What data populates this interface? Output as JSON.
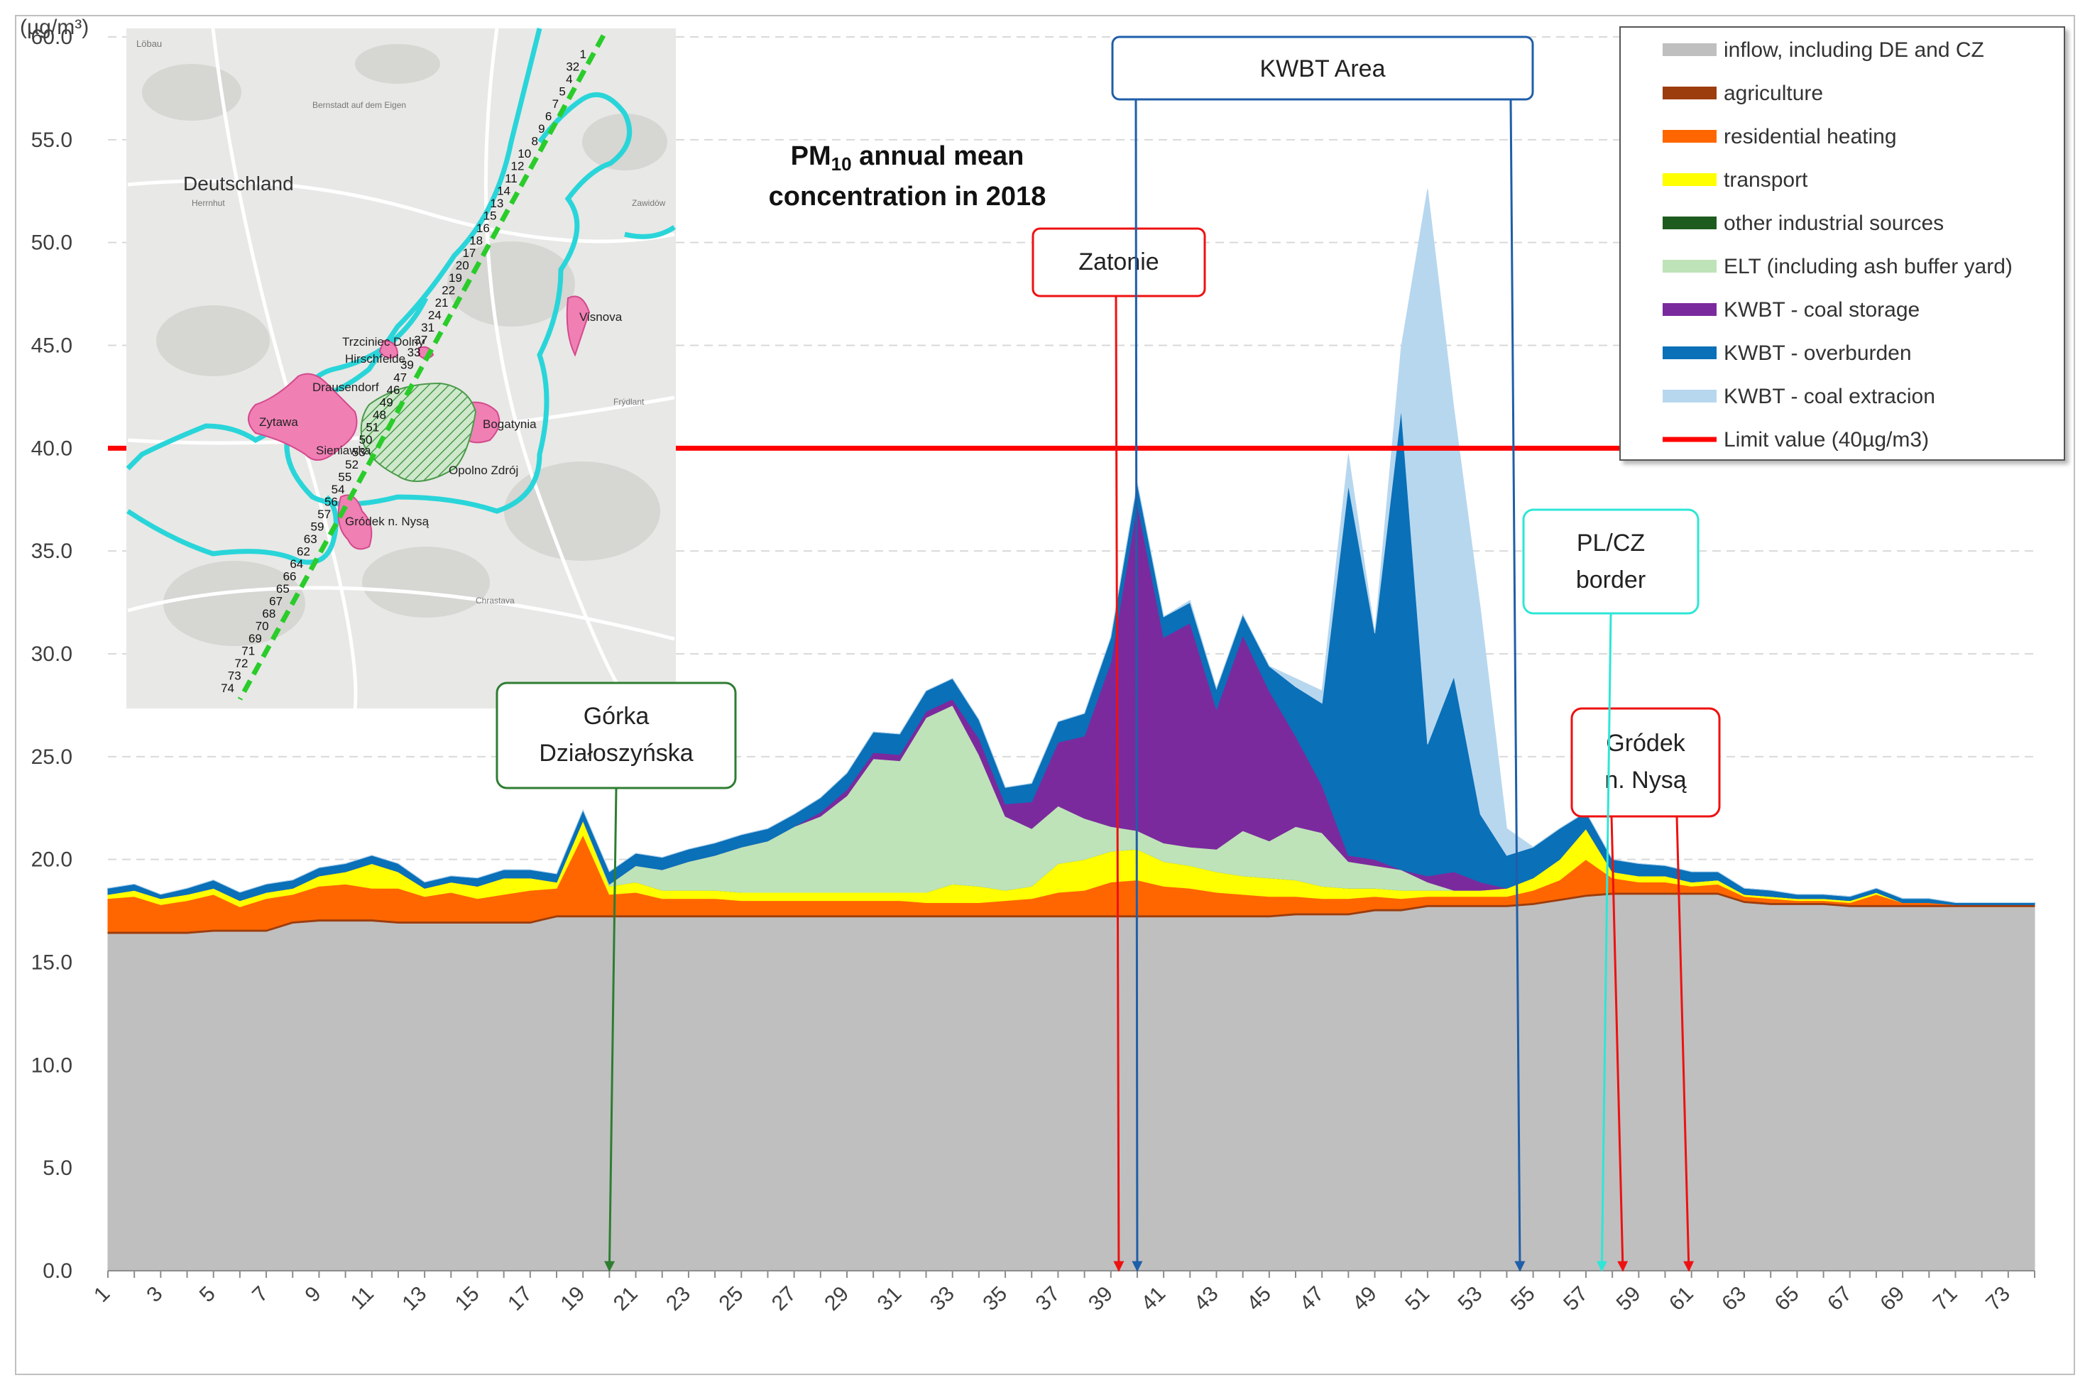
{
  "chart_data": {
    "type": "area",
    "title_main": "PM",
    "title_sub": "10",
    "title_rest": " annual mean",
    "title_line2": "concentration in 2018",
    "ylabel": "(µg/m³)",
    "ylim": [
      0,
      60
    ],
    "yticks": [
      "0.0",
      "5.0",
      "10.0",
      "15.0",
      "20.0",
      "25.0",
      "30.0",
      "35.0",
      "40.0",
      "45.0",
      "50.0",
      "55.0",
      "60.0"
    ],
    "x": [
      1,
      2,
      3,
      4,
      5,
      6,
      7,
      8,
      9,
      10,
      11,
      12,
      13,
      14,
      15,
      16,
      17,
      18,
      19,
      20,
      21,
      22,
      23,
      24,
      25,
      26,
      27,
      28,
      29,
      30,
      31,
      32,
      33,
      34,
      35,
      36,
      37,
      38,
      39,
      40,
      41,
      42,
      43,
      44,
      45,
      46,
      47,
      48,
      49,
      50,
      51,
      52,
      53,
      54,
      55,
      56,
      57,
      58,
      59,
      60,
      61,
      62,
      63,
      64,
      65,
      66,
      67,
      68,
      69,
      70,
      71,
      72,
      73,
      74
    ],
    "xtick_labels": [
      "1",
      "3",
      "5",
      "7",
      "9",
      "11",
      "13",
      "15",
      "17",
      "19",
      "21",
      "23",
      "25",
      "27",
      "29",
      "31",
      "33",
      "35",
      "37",
      "39",
      "41",
      "43",
      "45",
      "47",
      "49",
      "51",
      "53",
      "55",
      "57",
      "59",
      "61",
      "63",
      "65",
      "67",
      "69",
      "71",
      "73"
    ],
    "series": [
      {
        "name": "inflow, including DE and CZ",
        "color": "#bfbfbf",
        "values": [
          16.4,
          16.4,
          16.4,
          16.4,
          16.5,
          16.5,
          16.5,
          16.9,
          17.0,
          17.0,
          17.0,
          16.9,
          16.9,
          16.9,
          16.9,
          16.9,
          16.9,
          17.2,
          17.2,
          17.2,
          17.2,
          17.2,
          17.2,
          17.2,
          17.2,
          17.2,
          17.2,
          17.2,
          17.2,
          17.2,
          17.2,
          17.2,
          17.2,
          17.2,
          17.2,
          17.2,
          17.2,
          17.2,
          17.2,
          17.2,
          17.2,
          17.2,
          17.2,
          17.2,
          17.2,
          17.3,
          17.3,
          17.3,
          17.5,
          17.5,
          17.7,
          17.7,
          17.7,
          17.7,
          17.8,
          18.0,
          18.2,
          18.3,
          18.3,
          18.3,
          18.3,
          18.3,
          17.9,
          17.8,
          17.8,
          17.8,
          17.7,
          17.7,
          17.7,
          17.7,
          17.7,
          17.7,
          17.7,
          17.7
        ]
      },
      {
        "name": "agriculture",
        "color": "#9c3d0e",
        "values": [
          0.1,
          0.1,
          0.1,
          0.1,
          0.1,
          0.1,
          0.1,
          0.1,
          0.1,
          0.1,
          0.1,
          0.1,
          0.1,
          0.1,
          0.1,
          0.1,
          0.1,
          0.1,
          0.1,
          0.1,
          0.1,
          0.1,
          0.1,
          0.1,
          0.1,
          0.1,
          0.1,
          0.1,
          0.1,
          0.1,
          0.1,
          0.1,
          0.1,
          0.1,
          0.1,
          0.1,
          0.1,
          0.1,
          0.1,
          0.1,
          0.1,
          0.1,
          0.1,
          0.1,
          0.1,
          0.1,
          0.1,
          0.1,
          0.1,
          0.1,
          0.1,
          0.1,
          0.1,
          0.1,
          0.1,
          0.1,
          0.1,
          0.1,
          0.1,
          0.1,
          0.1,
          0.1,
          0.1,
          0.1,
          0.1,
          0.1,
          0.1,
          0.1,
          0.1,
          0.1,
          0.1,
          0.1,
          0.1,
          0.1
        ]
      },
      {
        "name": "residential heating",
        "color": "#ff6600",
        "values": [
          1.6,
          1.7,
          1.3,
          1.5,
          1.7,
          1.1,
          1.5,
          1.3,
          1.6,
          1.7,
          1.5,
          1.6,
          1.2,
          1.4,
          1.1,
          1.3,
          1.5,
          1.3,
          3.9,
          1.0,
          1.1,
          0.8,
          0.8,
          0.8,
          0.7,
          0.7,
          0.7,
          0.7,
          0.7,
          0.7,
          0.7,
          0.6,
          0.6,
          0.6,
          0.7,
          0.8,
          1.1,
          1.2,
          1.6,
          1.7,
          1.4,
          1.3,
          1.1,
          1.0,
          0.9,
          0.8,
          0.7,
          0.7,
          0.6,
          0.5,
          0.4,
          0.4,
          0.4,
          0.4,
          0.6,
          0.9,
          1.7,
          0.7,
          0.5,
          0.5,
          0.3,
          0.4,
          0.2,
          0.2,
          0.1,
          0.1,
          0.1,
          0.5,
          0.1,
          0.1,
          0.0,
          0.0,
          0.0,
          0.0
        ]
      },
      {
        "name": "transport",
        "color": "#ffff00",
        "values": [
          0.2,
          0.3,
          0.3,
          0.3,
          0.3,
          0.3,
          0.3,
          0.3,
          0.5,
          0.6,
          1.2,
          0.8,
          0.4,
          0.5,
          0.6,
          0.8,
          0.6,
          0.3,
          0.7,
          0.4,
          0.5,
          0.4,
          0.4,
          0.4,
          0.4,
          0.4,
          0.4,
          0.4,
          0.4,
          0.4,
          0.4,
          0.5,
          0.9,
          0.8,
          0.5,
          0.6,
          1.4,
          1.5,
          1.5,
          1.5,
          1.2,
          1.1,
          1.0,
          0.9,
          0.9,
          0.8,
          0.6,
          0.5,
          0.4,
          0.4,
          0.3,
          0.3,
          0.3,
          0.4,
          0.6,
          1.0,
          1.5,
          0.3,
          0.3,
          0.3,
          0.2,
          0.2,
          0.1,
          0.1,
          0.1,
          0.1,
          0.1,
          0.1,
          0.0,
          0.0,
          0.0,
          0.0,
          0.0,
          0.0
        ]
      },
      {
        "name": "other industrial sources",
        "color": "#1e5b1e",
        "values": [
          0.0,
          0.0,
          0.0,
          0.0,
          0.0,
          0.0,
          0.0,
          0.0,
          0.0,
          0.0,
          0.0,
          0.0,
          0.0,
          0.0,
          0.0,
          0.0,
          0.0,
          0.0,
          0.0,
          0.0,
          0.0,
          0.0,
          0.0,
          0.0,
          0.0,
          0.0,
          0.0,
          0.0,
          0.0,
          0.0,
          0.0,
          0.0,
          0.0,
          0.0,
          0.0,
          0.0,
          0.0,
          0.0,
          0.0,
          0.0,
          0.0,
          0.0,
          0.0,
          0.0,
          0.0,
          0.0,
          0.0,
          0.0,
          0.0,
          0.0,
          0.0,
          0.0,
          0.0,
          0.0,
          0.0,
          0.0,
          0.0,
          0.0,
          0.0,
          0.0,
          0.0,
          0.0,
          0.0,
          0.0,
          0.0,
          0.0,
          0.0,
          0.0,
          0.0,
          0.0,
          0.0,
          0.0,
          0.0,
          0.0
        ]
      },
      {
        "name": "ELT (including ash buffer yard)",
        "color": "#bee3b8",
        "values": [
          0.0,
          0.0,
          0.0,
          0.0,
          0.0,
          0.0,
          0.0,
          0.0,
          0.0,
          0.0,
          0.0,
          0.0,
          0.0,
          0.0,
          0.0,
          0.0,
          0.0,
          0.0,
          0.0,
          0.1,
          0.8,
          1.0,
          1.4,
          1.7,
          2.2,
          2.5,
          3.2,
          3.7,
          4.7,
          6.5,
          6.4,
          8.5,
          8.7,
          6.4,
          3.6,
          2.8,
          2.8,
          2.0,
          1.2,
          0.9,
          0.9,
          0.9,
          1.1,
          2.2,
          1.8,
          2.6,
          2.6,
          1.3,
          1.1,
          1.0,
          0.4,
          0.0,
          0.0,
          0.0,
          0.0,
          0.0,
          0.0,
          0.0,
          0.0,
          0.0,
          0.0,
          0.0,
          0.0,
          0.0,
          0.0,
          0.0,
          0.0,
          0.0,
          0.0,
          0.0,
          0.0,
          0.0,
          0.0,
          0.0
        ]
      },
      {
        "name": "KWBT - coal storage",
        "color": "#7b2a9e",
        "values": [
          0.0,
          0.0,
          0.0,
          0.0,
          0.0,
          0.0,
          0.0,
          0.0,
          0.0,
          0.0,
          0.0,
          0.0,
          0.0,
          0.0,
          0.0,
          0.0,
          0.0,
          0.0,
          0.0,
          0.0,
          0.0,
          0.0,
          0.0,
          0.0,
          0.0,
          0.0,
          0.0,
          0.2,
          0.3,
          0.3,
          0.3,
          0.3,
          0.3,
          0.8,
          0.6,
          1.3,
          3.1,
          4.0,
          8.0,
          15.9,
          10.0,
          10.9,
          6.8,
          9.5,
          7.3,
          4.4,
          2.3,
          0.3,
          0.3,
          0.0,
          0.3,
          0.9,
          0.4,
          0.0,
          0.0,
          0.0,
          0.0,
          0.0,
          0.0,
          0.0,
          0.0,
          0.0,
          0.0,
          0.0,
          0.0,
          0.0,
          0.0,
          0.0,
          0.0,
          0.0,
          0.0,
          0.0,
          0.0,
          0.0
        ]
      },
      {
        "name": "KWBT - overburden",
        "color": "#0a70b8",
        "values": [
          0.3,
          0.3,
          0.2,
          0.3,
          0.4,
          0.4,
          0.4,
          0.4,
          0.4,
          0.4,
          0.4,
          0.4,
          0.3,
          0.3,
          0.4,
          0.4,
          0.4,
          0.4,
          0.5,
          0.6,
          0.6,
          0.6,
          0.6,
          0.6,
          0.6,
          0.6,
          0.6,
          0.7,
          0.8,
          1.0,
          1.0,
          1.0,
          1.0,
          0.9,
          0.8,
          0.9,
          1.0,
          1.1,
          1.2,
          1.0,
          1.0,
          1.0,
          1.0,
          1.0,
          1.2,
          2.4,
          4.0,
          18.0,
          11.0,
          22.4,
          6.4,
          9.5,
          3.3,
          1.6,
          1.5,
          1.5,
          0.8,
          0.6,
          0.6,
          0.5,
          0.5,
          0.4,
          0.3,
          0.3,
          0.2,
          0.2,
          0.2,
          0.2,
          0.2,
          0.2,
          0.1,
          0.1,
          0.1,
          0.1
        ]
      },
      {
        "name": "KWBT - coal extracion",
        "color": "#b7d7ef",
        "values": [
          0.0,
          0.0,
          0.0,
          0.0,
          0.0,
          0.0,
          0.0,
          0.0,
          0.0,
          0.0,
          0.0,
          0.0,
          0.0,
          0.0,
          0.0,
          0.0,
          0.0,
          0.0,
          0.0,
          0.0,
          0.0,
          0.0,
          0.0,
          0.0,
          0.0,
          0.0,
          0.0,
          0.0,
          0.0,
          0.0,
          0.0,
          0.0,
          0.0,
          0.0,
          0.0,
          0.0,
          0.0,
          0.0,
          0.0,
          0.0,
          0.0,
          0.1,
          0.0,
          0.0,
          0.0,
          0.4,
          0.6,
          1.5,
          0.0,
          3.0,
          27.0,
          13.0,
          10.0,
          1.3,
          0.0,
          0.0,
          0.0,
          0.0,
          0.0,
          0.0,
          0.0,
          0.0,
          0.0,
          0.0,
          0.0,
          0.0,
          0.0,
          0.0,
          0.0,
          0.0,
          0.0,
          0.0,
          0.0,
          0.0
        ]
      }
    ],
    "limit": {
      "name": "Limit value (40µg/m3)",
      "value": 40,
      "color": "#ff0000"
    },
    "annotations": [
      {
        "text": "KWBT Area",
        "color": "#1f5ea8",
        "arrows_x": [
          40,
          54.5
        ]
      },
      {
        "text": "Zatonie",
        "color": "#ee1111",
        "arrows_x": [
          39.3
        ]
      },
      {
        "line1": "Górka",
        "line2": "Działoszyńska",
        "color": "#2e7d32",
        "arrows_x": [
          20
        ]
      },
      {
        "line1": "PL/CZ",
        "line2": "border",
        "color": "#2ee6d6",
        "arrows_x": [
          57.6
        ]
      },
      {
        "line1": "Gródek",
        "line2": "n. Nysą",
        "color": "#ee1111",
        "arrows_x": [
          58.4,
          60.9
        ]
      }
    ]
  },
  "map": {
    "country_label": "Deutschland",
    "places": [
      "Trzciniec Dolny",
      "Hirschfelde",
      "Drausendorf",
      "Zytawa",
      "Sieniawka",
      "Bogatynia",
      "Opolno Zdrój",
      "Gródek n. Nysą",
      "Visnova"
    ],
    "route_numbers": [
      "1",
      "32",
      "4",
      "5",
      "7",
      "6",
      "9",
      "8",
      "10",
      "12",
      "11",
      "14",
      "13",
      "15",
      "16",
      "18",
      "17",
      "20",
      "19",
      "22",
      "21",
      "24",
      "31",
      "37",
      "33",
      "39",
      "47",
      "46",
      "49",
      "48",
      "51",
      "50",
      "53",
      "52",
      "55",
      "54",
      "56",
      "57",
      "59",
      "63",
      "62",
      "64",
      "66",
      "65",
      "67",
      "68",
      "70",
      "69",
      "71",
      "72",
      "73",
      "74"
    ],
    "small_labels": [
      "Löbau",
      "Bernstadt auf dem Eigen",
      "Herrnhut",
      "Zawidów",
      "Frýdlant",
      "Chrastava"
    ]
  }
}
